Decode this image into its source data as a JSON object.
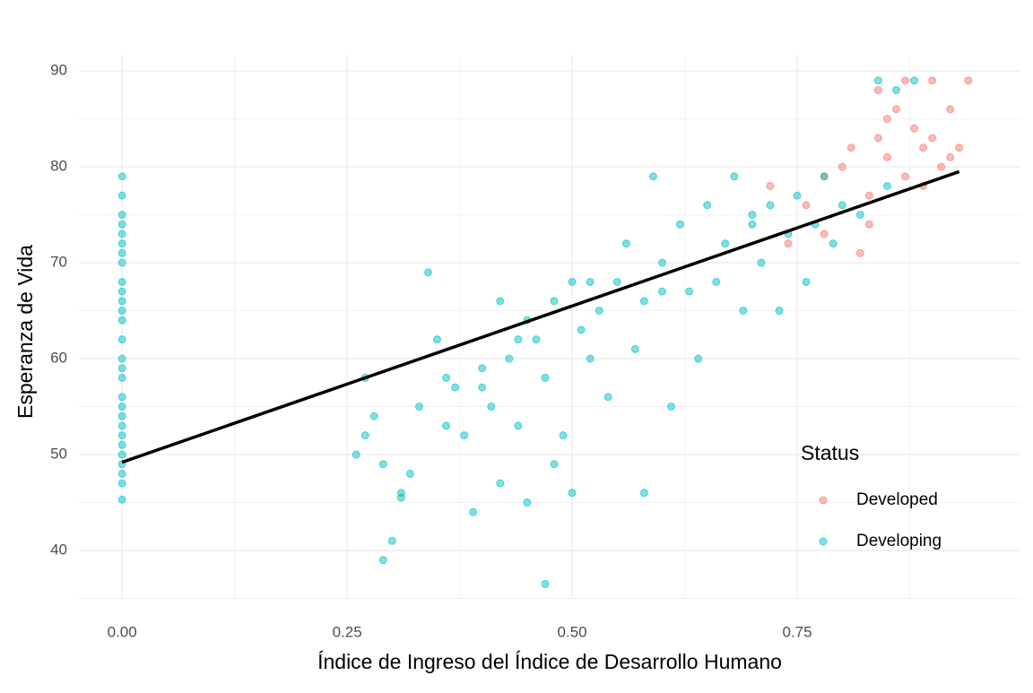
{
  "chart_data": {
    "type": "scatter",
    "xlabel": "Índice de Ingreso del Índice de Desarrollo Humano",
    "ylabel": "Esperanza de Vida",
    "legend_title": "Status",
    "legend": "bottom-right",
    "grid": true,
    "xlim": [
      -0.048,
      0.998
    ],
    "ylim": [
      34.95,
      91.6
    ],
    "xticks": [
      {
        "value": 0,
        "label": "0.00"
      },
      {
        "value": 0.25,
        "label": "0.25"
      },
      {
        "value": 0.5,
        "label": "0.50"
      },
      {
        "value": 0.75,
        "label": "0.75"
      }
    ],
    "yticks": [
      40,
      50,
      60,
      70,
      80,
      90
    ],
    "series": [
      {
        "name": "Developed",
        "color": "#F8766D",
        "x": [
          0.72,
          0.74,
          0.76,
          0.78,
          0.8,
          0.81,
          0.82,
          0.83,
          0.84,
          0.85,
          0.86,
          0.87,
          0.88,
          0.89,
          0.9,
          0.91,
          0.92,
          0.93,
          0.94,
          0.87,
          0.83,
          0.85,
          0.89,
          0.92,
          0.78,
          0.84,
          0.9
        ],
        "values": [
          78,
          72,
          76,
          73,
          80,
          82,
          71,
          77,
          83,
          81,
          86,
          79,
          84,
          82,
          89,
          80,
          86,
          82,
          89,
          89,
          74,
          85,
          78,
          81,
          79,
          88,
          83
        ]
      },
      {
        "name": "Developing",
        "color": "#00BFC4",
        "x": [
          0,
          0,
          0,
          0,
          0,
          0,
          0,
          0,
          0,
          0,
          0,
          0,
          0,
          0,
          0,
          0,
          0,
          0,
          0,
          0,
          0,
          0,
          0,
          0,
          0,
          0,
          0,
          0,
          0.26,
          0.27,
          0.28,
          0.29,
          0.29,
          0.3,
          0.31,
          0.32,
          0.33,
          0.34,
          0.35,
          0.36,
          0.37,
          0.38,
          0.39,
          0.4,
          0.41,
          0.42,
          0.42,
          0.43,
          0.44,
          0.45,
          0.45,
          0.46,
          0.47,
          0.47,
          0.48,
          0.49,
          0.5,
          0.5,
          0.51,
          0.52,
          0.53,
          0.54,
          0.55,
          0.56,
          0.57,
          0.58,
          0.58,
          0.59,
          0.6,
          0.61,
          0.62,
          0.63,
          0.64,
          0.65,
          0.66,
          0.67,
          0.68,
          0.69,
          0.7,
          0.71,
          0.72,
          0.73,
          0.74,
          0.75,
          0.76,
          0.77,
          0.78,
          0.79,
          0.8,
          0.82,
          0.84,
          0.86,
          0.88,
          0.85,
          0.4,
          0.44,
          0.52,
          0.6,
          0.7,
          0.36,
          0.48,
          0.31,
          0.27
        ],
        "values": [
          45.3,
          47,
          48,
          49,
          50,
          51,
          52,
          53,
          54,
          55,
          56,
          58,
          59,
          60,
          62,
          64,
          65,
          66,
          67,
          68,
          70,
          71,
          72,
          73,
          74,
          75,
          77,
          79,
          50,
          52,
          54,
          49,
          39,
          41,
          46,
          48,
          55,
          69,
          62,
          58,
          57,
          52,
          44,
          59,
          55,
          66,
          47,
          60,
          53,
          64,
          45,
          62,
          36.5,
          58,
          66,
          52,
          68,
          46,
          63,
          60,
          65,
          56,
          68,
          72,
          61,
          66,
          46,
          79,
          70,
          55,
          74,
          67,
          60,
          76,
          68,
          72,
          79,
          65,
          74,
          70,
          76,
          65,
          73,
          77,
          68,
          74,
          79,
          72,
          76,
          75,
          89,
          88,
          89,
          78,
          57,
          62,
          68,
          67,
          75,
          53,
          49,
          45.5,
          58
        ]
      }
    ],
    "fit": {
      "color": "#000000",
      "x": [
        0,
        0.93
      ],
      "values": [
        49.2,
        79.5
      ]
    }
  }
}
